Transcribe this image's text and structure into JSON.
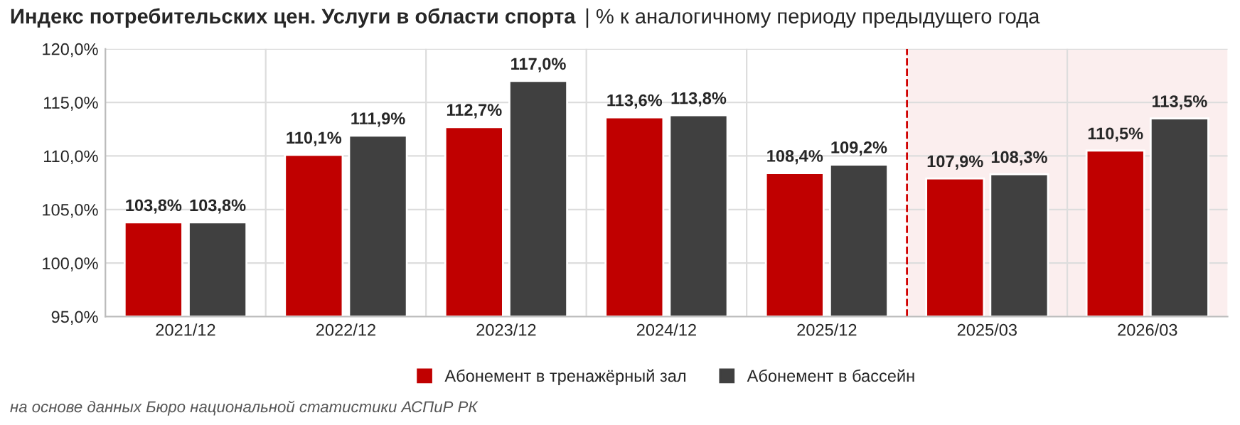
{
  "chart_data": {
    "type": "bar",
    "title": "Индекс потребительских цен. Услуги в области спорта",
    "subtitle": "| % к аналогичному периоду предыдущего года",
    "categories": [
      "2021/12",
      "2022/12",
      "2023/12",
      "2024/12",
      "2025/12",
      "2025/03",
      "2026/03"
    ],
    "series": [
      {
        "name": "Абонемент в тренажёрный зал",
        "color": "#c00000",
        "values": [
          103.8,
          110.1,
          112.7,
          113.6,
          108.4,
          107.9,
          110.5
        ],
        "value_labels": [
          "103,8%",
          "110,1%",
          "112,7%",
          "113,6%",
          "108,4%",
          "107,9%",
          "110,5%"
        ]
      },
      {
        "name": "Абонемент в бассейн",
        "color": "#404040",
        "values": [
          103.8,
          111.9,
          117.0,
          113.8,
          109.2,
          108.3,
          113.5
        ],
        "value_labels": [
          "103,8%",
          "111,9%",
          "117,0%",
          "113,8%",
          "109,2%",
          "108,3%",
          "113,5%"
        ]
      }
    ],
    "ylim": [
      95,
      120
    ],
    "yticks": [
      {
        "value": 95,
        "label": "95,0%"
      },
      {
        "value": 100,
        "label": "100,0%"
      },
      {
        "value": 105,
        "label": "105,0%"
      },
      {
        "value": 110,
        "label": "110,0%"
      },
      {
        "value": 115,
        "label": "115,0%"
      },
      {
        "value": 120,
        "label": "120,0%"
      }
    ],
    "bands": [
      {
        "axis": "x",
        "from": "2025/03",
        "to": "2026/03",
        "color": "#fbeeee"
      }
    ],
    "ref_lines": [
      {
        "axis": "x",
        "value": "2025/03",
        "color": "#d00000",
        "line_style": "dashed"
      }
    ],
    "grid": "y",
    "legend": "bottom",
    "annotations": [
      "на основе данных Бюро национальной статистики АСПиР РК"
    ]
  }
}
